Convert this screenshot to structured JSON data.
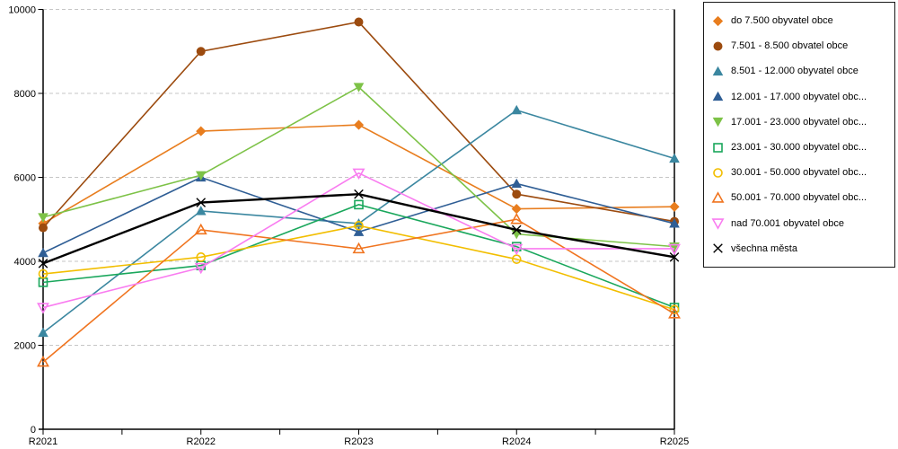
{
  "chart_data": {
    "type": "line",
    "title": "",
    "xlabel": "",
    "ylabel": "",
    "x_categories": [
      "R2021",
      "R2022",
      "R2023",
      "R2024",
      "R2025"
    ],
    "y_ticks": [
      0,
      2000,
      4000,
      6000,
      8000,
      10000
    ],
    "ylim": [
      0,
      10000
    ],
    "grid": "horizontal dashed gridlines at every 2000",
    "legend_position": "right-outside boxed",
    "axis_color": "#000000",
    "gridline_color": "#c6c6c6",
    "series": [
      {
        "name": "do 7.500 obyvatel obce",
        "color": "#E87D1E",
        "marker": "diamond",
        "values": [
          4900,
          7100,
          7250,
          5250,
          5300
        ]
      },
      {
        "name": "7.501 - 8.500 obvatel obce",
        "color": "#9C4B0F",
        "marker": "circle",
        "values": [
          4800,
          9000,
          9700,
          5600,
          4950
        ]
      },
      {
        "name": "8.501 - 12.000 obyvatel obce",
        "color": "#3B87A0",
        "marker": "triangle-up",
        "values": [
          2300,
          5200,
          4900,
          7600,
          6450
        ]
      },
      {
        "name": "12.001 - 17.000 obyvatel obc...",
        "color": "#2F5E95",
        "marker": "triangle-up",
        "values": [
          4200,
          6000,
          4700,
          5850,
          4900
        ]
      },
      {
        "name": "17.001 - 23.000 obyvatel obc...",
        "color": "#7DC247",
        "marker": "triangle-down",
        "values": [
          5050,
          6050,
          8150,
          4650,
          4350
        ]
      },
      {
        "name": "23.001 - 30.000 obyvatel obc...",
        "color": "#1AA75C",
        "marker": "square-open",
        "values": [
          3500,
          3900,
          5350,
          4350,
          2900
        ]
      },
      {
        "name": "30.001 - 50.000 obyvatel obc...",
        "color": "#F2BE00",
        "marker": "circle-open",
        "values": [
          3700,
          4100,
          4850,
          4050,
          2850
        ]
      },
      {
        "name": "50.001 - 70.000 obyvatel obc...",
        "color": "#F0741F",
        "marker": "triangle-up-open",
        "values": [
          1600,
          4750,
          4300,
          5000,
          2750
        ]
      },
      {
        "name": "nad 70.001 obyvatel obce",
        "color": "#F97CF0",
        "marker": "triangle-down-open",
        "values": [
          2900,
          3850,
          6100,
          4300,
          4300
        ]
      },
      {
        "name": "všechna města",
        "color": "#000000",
        "marker": "x",
        "values": [
          3950,
          5400,
          5600,
          4750,
          4100
        ]
      }
    ]
  }
}
